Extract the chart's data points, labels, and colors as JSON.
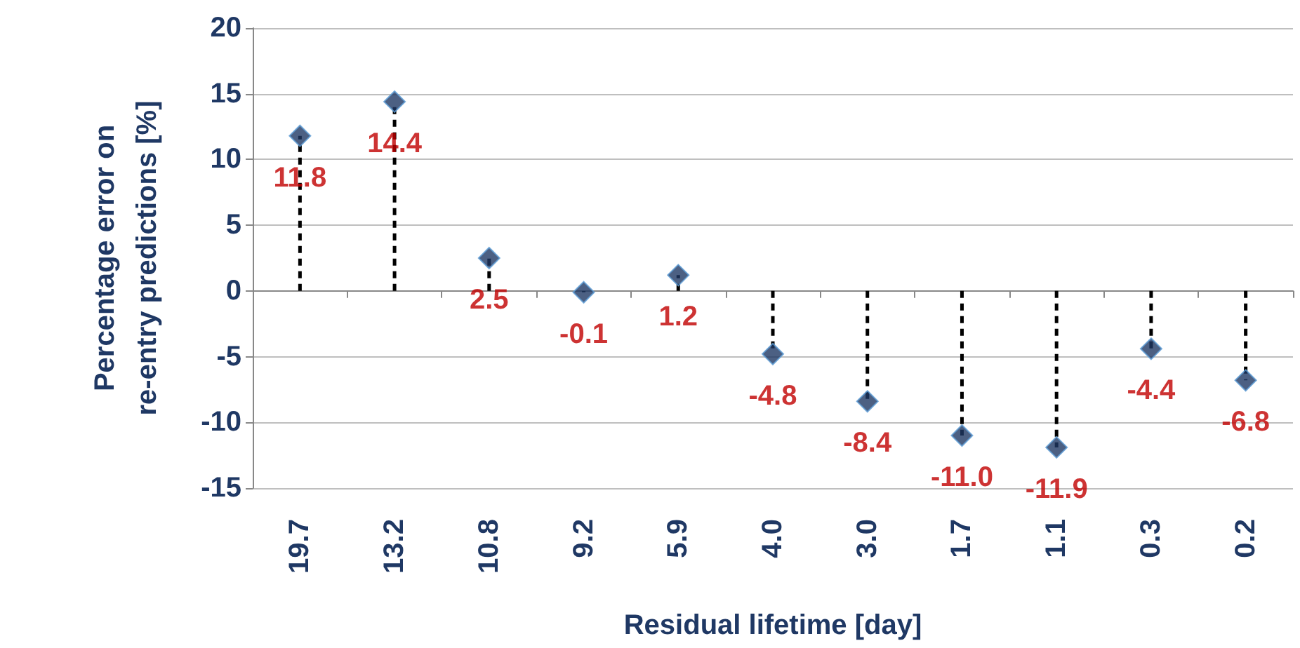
{
  "chart_data": {
    "type": "lollipop",
    "xlabel": "Residual lifetime [day]",
    "ylabel": "Percentage error on\nre-entry predictions [%]",
    "categories": [
      "19.7",
      "13.2",
      "10.8",
      "9.2",
      "5.9",
      "4.0",
      "3.0",
      "1.7",
      "1.1",
      "0.3",
      "0.2"
    ],
    "series": [
      {
        "color": "#1f3864",
        "values": [
          11.8,
          14.4,
          2.5,
          -0.1,
          1.2,
          -4.8,
          -8.4,
          -11.0,
          -11.9,
          -4.4,
          -6.8
        ],
        "value_labels": [
          "11.8",
          "14.4",
          "2.5",
          "-0.1",
          "1.2",
          "-4.8",
          "-8.4",
          "-11.0",
          "-11.9",
          "-4.4",
          "-6.8"
        ]
      }
    ],
    "ylim": [
      -15,
      20
    ],
    "yticks": [
      -15,
      -10,
      -5,
      0,
      5,
      10,
      15,
      20
    ],
    "grid": "y",
    "marker": "diamond",
    "line_style": "dashed"
  }
}
